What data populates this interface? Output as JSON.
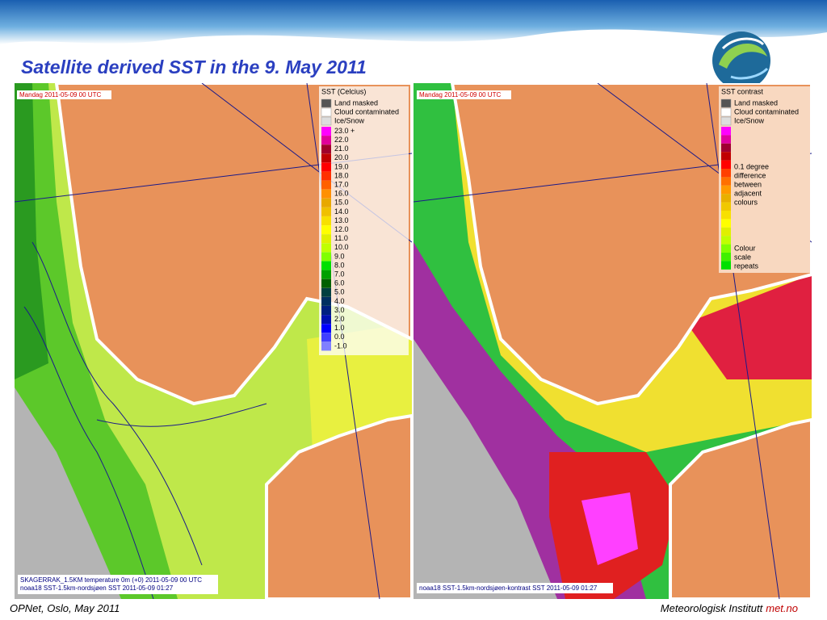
{
  "header": {
    "title": "Satellite derived SST in the 9. May 2011"
  },
  "maps": [
    {
      "timestamp": "Mandag 2011-05-09 00 UTC",
      "legend": {
        "title": "SST (Celcius)",
        "masks": [
          "Land masked",
          "Cloud contaminated",
          "Ice/Snow"
        ],
        "scale": [
          {
            "label": "23.0 +",
            "color": "#ff00ff"
          },
          {
            "label": "22.0",
            "color": "#e0009a"
          },
          {
            "label": "21.0",
            "color": "#a0002a"
          },
          {
            "label": "20.0",
            "color": "#c00000"
          },
          {
            "label": "19.0",
            "color": "#ff0000"
          },
          {
            "label": "18.0",
            "color": "#ff3000"
          },
          {
            "label": "17.0",
            "color": "#ff6000"
          },
          {
            "label": "16.0",
            "color": "#ff9000"
          },
          {
            "label": "15.0",
            "color": "#e8a800"
          },
          {
            "label": "14.0",
            "color": "#f0c000"
          },
          {
            "label": "13.0",
            "color": "#f8e000"
          },
          {
            "label": "12.0",
            "color": "#ffff00"
          },
          {
            "label": "11.0",
            "color": "#e0f000"
          },
          {
            "label": "10.0",
            "color": "#c0ff00"
          },
          {
            "label": "9.0",
            "color": "#80ff00"
          },
          {
            "label": "8.0",
            "color": "#00e000"
          },
          {
            "label": "7.0",
            "color": "#00a000"
          },
          {
            "label": "6.0",
            "color": "#006000"
          },
          {
            "label": "5.0",
            "color": "#004040"
          },
          {
            "label": "4.0",
            "color": "#003060"
          },
          {
            "label": "3.0",
            "color": "#002080"
          },
          {
            "label": "2.0",
            "color": "#0010b0"
          },
          {
            "label": "1.0",
            "color": "#0000ff"
          },
          {
            "label": "0.0",
            "color": "#4040ff"
          },
          {
            "label": "-1.0",
            "color": "#8080ff"
          }
        ]
      },
      "captions": [
        "SKAGERRAK_1.5KM temperature 0m (+0) 2011-05-09 00 UTC",
        "noaa18 SST-1.5km-nordsjøen SST 2011-05-09 01:27"
      ]
    },
    {
      "timestamp": "Mandag 2011-05-09 00 UTC",
      "legend": {
        "title": "SST contrast",
        "masks": [
          "Land masked",
          "Cloud contaminated",
          "Ice/Snow"
        ],
        "notes": [
          "0.1 degree",
          "difference",
          "between",
          "adjacent",
          "colours"
        ],
        "notes2": [
          "Colour",
          "scale",
          "repeats"
        ]
      },
      "captions": [
        "noaa18 SST-1.5km-nordsjøen-kontrast SST 2011-05-09 01:27"
      ]
    }
  ],
  "footer": {
    "left": "OPNet, Oslo, May 2011",
    "org": "Meteorologisk Institutt",
    "site": "met.no"
  }
}
